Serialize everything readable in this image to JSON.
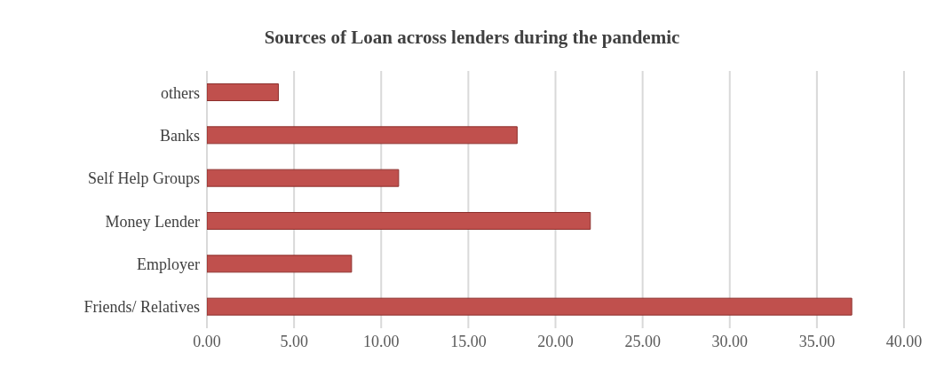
{
  "chart_data": {
    "type": "bar",
    "orientation": "horizontal",
    "title": "Sources of Loan across lenders during the pandemic",
    "categories": [
      "others",
      "Banks",
      "Self Help Groups",
      "Money Lender",
      "Employer",
      "Friends/ Relatives"
    ],
    "values": [
      4.1,
      17.8,
      11.0,
      22.0,
      8.3,
      37.0
    ],
    "color": "#c0504d",
    "xlim": [
      0,
      40
    ],
    "xticks": [
      {
        "value": 0,
        "label": "0.00"
      },
      {
        "value": 5,
        "label": "5.00"
      },
      {
        "value": 10,
        "label": "10.00"
      },
      {
        "value": 15,
        "label": "15.00"
      },
      {
        "value": 20,
        "label": "20.00"
      },
      {
        "value": 25,
        "label": "25.00"
      },
      {
        "value": 30,
        "label": "30.00"
      },
      {
        "value": 35,
        "label": "35.00"
      },
      {
        "value": 40,
        "label": "40.00"
      }
    ],
    "grid": "x"
  }
}
